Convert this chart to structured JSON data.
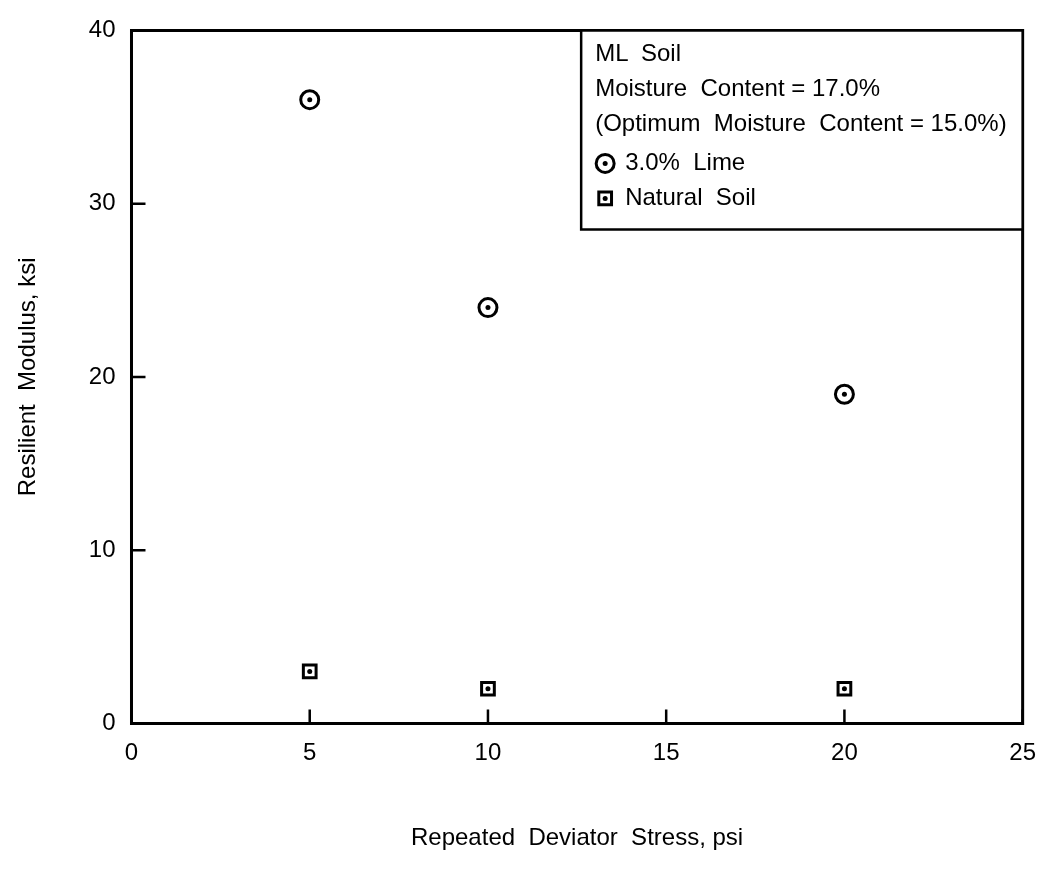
{
  "chart_data": {
    "type": "scatter",
    "xlabel": "Repeated  Deviator  Stress, psi",
    "ylabel": "Resilient  Modulus, ksi",
    "annotations": [
      "ML  Soil",
      "Moisture  Content = 17.0%",
      "(Optimum  Moisture  Content = 15.0%)"
    ],
    "x": [
      5,
      10,
      20
    ],
    "series": [
      {
        "name": "3.0%  Lime",
        "color": "#000000",
        "marker": "circle",
        "values": [
          36,
          24,
          19
        ]
      },
      {
        "name": "Natural  Soil",
        "color": "#000000",
        "marker": "square",
        "values": [
          3,
          2,
          2
        ]
      }
    ],
    "xlim": [
      0,
      25
    ],
    "xticks": [
      0,
      5,
      10,
      15,
      20,
      25
    ],
    "ylim": [
      0,
      40
    ],
    "yticks": [
      0,
      10,
      20,
      30,
      40
    ],
    "grid": false,
    "legend": "top right"
  }
}
